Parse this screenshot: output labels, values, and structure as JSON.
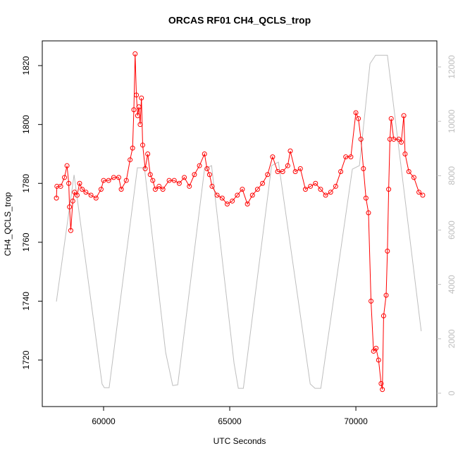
{
  "chart_data": {
    "type": "line",
    "title": "ORCAS RF01 CH4_QCLS_trop",
    "x_label": "UTC Seconds",
    "y_label": "CH4_QCLS_trop",
    "xlim": [
      57570,
      73210
    ],
    "xticks": [
      60000,
      65000,
      70000
    ],
    "ylim": [
      1704.2,
      1828.4
    ],
    "yticks": [
      1720,
      1740,
      1760,
      1780,
      1800,
      1820
    ],
    "y2lim": [
      -492,
      12959
    ],
    "y2ticks": [
      0,
      2000,
      4000,
      6000,
      8000,
      10000,
      12000
    ],
    "series": [
      {
        "color": "#ff0000",
        "marker": "circle",
        "x": [
          58130,
          58150,
          58300,
          58450,
          58550,
          58620,
          58650,
          58700,
          58780,
          58850,
          58950,
          59050,
          59150,
          59300,
          59500,
          59700,
          59900,
          60000,
          60200,
          60400,
          60600,
          60700,
          60900,
          61050,
          61150,
          61200,
          61250,
          61300,
          61350,
          61400,
          61450,
          61500,
          61550,
          61650,
          61750,
          61850,
          61950,
          62050,
          62200,
          62350,
          62600,
          62800,
          63000,
          63200,
          63400,
          63600,
          63800,
          64000,
          64100,
          64200,
          64300,
          64500,
          64700,
          64900,
          65100,
          65300,
          65500,
          65700,
          65900,
          66100,
          66300,
          66500,
          66700,
          66900,
          67100,
          67300,
          67400,
          67600,
          67800,
          68000,
          68200,
          68400,
          68600,
          68800,
          69000,
          69200,
          69400,
          69600,
          69800,
          70000,
          70100,
          70200,
          70300,
          70400,
          70500,
          70600,
          70700,
          70800,
          70900,
          71000,
          71050,
          71100,
          71200,
          71250,
          71300,
          71350,
          71400,
          71500,
          71700,
          71800,
          71900,
          71950,
          72100,
          72300,
          72500,
          72650
        ],
        "values": [
          1775,
          1779,
          1779,
          1782,
          1786,
          1780,
          1772,
          1764,
          1774,
          1777,
          1776,
          1780,
          1778,
          1777,
          1776,
          1775,
          1778,
          1781,
          1781,
          1782,
          1782,
          1778,
          1781,
          1788,
          1792,
          1805,
          1824,
          1810,
          1803,
          1806,
          1800,
          1809,
          1793,
          1785,
          1790,
          1783,
          1781,
          1778,
          1779,
          1778,
          1781,
          1781,
          1780,
          1782,
          1779,
          1783,
          1786,
          1790,
          1785,
          1783,
          1779,
          1776,
          1775,
          1773,
          1774,
          1776,
          1778,
          1773,
          1776,
          1778,
          1780,
          1783,
          1789,
          1784,
          1784,
          1786,
          1791,
          1784,
          1785,
          1778,
          1779,
          1780,
          1778,
          1776,
          1777,
          1779,
          1784,
          1789,
          1789,
          1804,
          1802,
          1795,
          1785,
          1775,
          1770,
          1740,
          1723,
          1724,
          1720,
          1712,
          1710,
          1735,
          1742,
          1757,
          1778,
          1795,
          1802,
          1795,
          1795,
          1794,
          1803,
          1790,
          1784,
          1782,
          1777,
          1776
        ]
      },
      {
        "color": "#bebebe",
        "axis": "y2",
        "x": [
          58130,
          58830,
          59940,
          60030,
          60220,
          61340,
          61620,
          62460,
          62740,
          62940,
          64000,
          64280,
          65170,
          65340,
          65540,
          66660,
          66930,
          68190,
          68380,
          68610,
          69860,
          70140,
          70560,
          70780,
          71250,
          71530,
          72590
        ],
        "values": [
          3370,
          8030,
          340,
          200,
          200,
          8290,
          8290,
          1500,
          280,
          310,
          8240,
          8370,
          1110,
          180,
          180,
          8370,
          8500,
          340,
          180,
          180,
          8240,
          8370,
          12120,
          12430,
          12430,
          10310,
          2280
        ]
      }
    ]
  }
}
